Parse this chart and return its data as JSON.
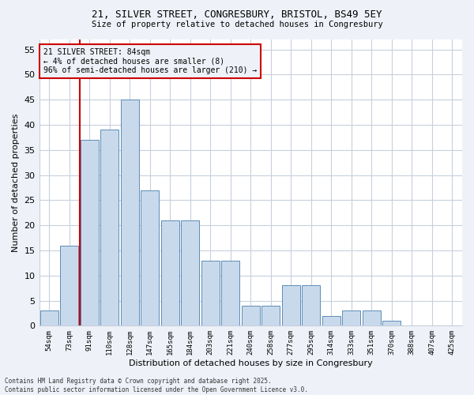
{
  "title1": "21, SILVER STREET, CONGRESBURY, BRISTOL, BS49 5EY",
  "title2": "Size of property relative to detached houses in Congresbury",
  "xlabel": "Distribution of detached houses by size in Congresbury",
  "ylabel": "Number of detached properties",
  "bin_labels": [
    "54sqm",
    "73sqm",
    "91sqm",
    "110sqm",
    "128sqm",
    "147sqm",
    "165sqm",
    "184sqm",
    "203sqm",
    "221sqm",
    "240sqm",
    "258sqm",
    "277sqm",
    "295sqm",
    "314sqm",
    "333sqm",
    "351sqm",
    "370sqm",
    "388sqm",
    "407sqm",
    "425sqm"
  ],
  "bar_values": [
    3,
    16,
    37,
    39,
    45,
    27,
    21,
    21,
    13,
    13,
    4,
    4,
    8,
    8,
    2,
    3,
    3,
    1,
    0,
    0,
    0
  ],
  "bar_color": "#c9d9ec",
  "bar_edge_color": "#5b8db8",
  "subject_line_color": "#cc0000",
  "annotation_text": "21 SILVER STREET: 84sqm\n← 4% of detached houses are smaller (8)\n96% of semi-detached houses are larger (210) →",
  "annotation_box_color": "#cc0000",
  "yticks": [
    0,
    5,
    10,
    15,
    20,
    25,
    30,
    35,
    40,
    45,
    50,
    55
  ],
  "ylim": [
    0,
    57
  ],
  "footer": "Contains HM Land Registry data © Crown copyright and database right 2025.\nContains public sector information licensed under the Open Government Licence v3.0.",
  "bg_color": "#eef2f8",
  "plot_bg_color": "#ffffff",
  "grid_color": "#c8d0dc"
}
